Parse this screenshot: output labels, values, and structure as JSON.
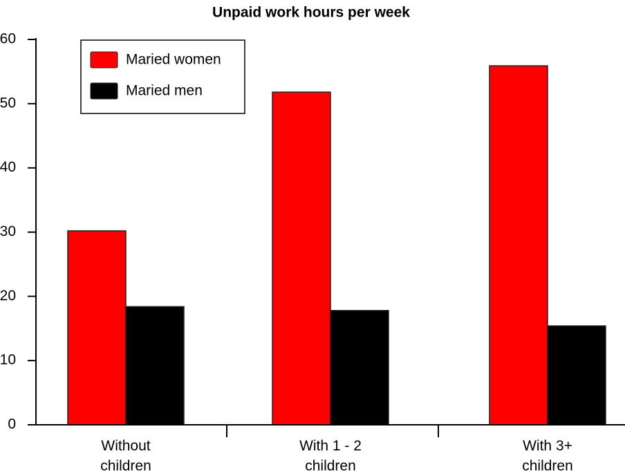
{
  "chart_data": {
    "type": "bar",
    "title": "Unpaid work hours per week",
    "categories": [
      "Without children",
      "With 1 - 2 children",
      "With 3+ children"
    ],
    "series": [
      {
        "name": "Maried women",
        "color": "#ff0000",
        "values": [
          30.2,
          51.8,
          55.9
        ]
      },
      {
        "name": "Maried men",
        "color": "#000000",
        "values": [
          18.4,
          17.8,
          15.4
        ]
      }
    ],
    "ylim": [
      0,
      60
    ],
    "yticks": [
      0,
      10,
      20,
      30,
      40,
      50,
      60
    ],
    "grid": false,
    "legend": "upper left"
  }
}
